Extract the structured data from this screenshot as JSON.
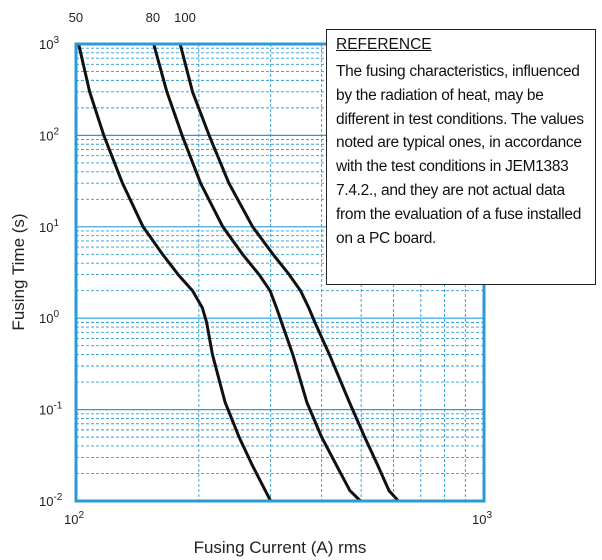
{
  "chart_data": {
    "type": "line",
    "xlabel": "Fusing Current (A) rms",
    "ylabel": "Fusing Time (s)",
    "x_scale": "log",
    "y_scale": "log",
    "xlim": [
      100,
      1000
    ],
    "ylim": [
      0.01,
      1000
    ],
    "grid": true,
    "x_ticks": [
      {
        "base": "10",
        "exp": "2"
      },
      {
        "base": "10",
        "exp": "3"
      }
    ],
    "y_ticks": [
      {
        "base": "10",
        "exp": "-2"
      },
      {
        "base": "10",
        "exp": "-1"
      },
      {
        "base": "10",
        "exp": "0"
      },
      {
        "base": "10",
        "exp": "1"
      },
      {
        "base": "10",
        "exp": "2"
      },
      {
        "base": "10",
        "exp": "3"
      }
    ],
    "series": [
      {
        "name": "50",
        "x": [
          101.5,
          108,
          117,
          130,
          146,
          163,
          178,
          193,
          204,
          209,
          216,
          232,
          251,
          270,
          291,
          300
        ],
        "y": [
          1000,
          300,
          100,
          30,
          10,
          5,
          3,
          2,
          1.3,
          0.9,
          0.4,
          0.12,
          0.05,
          0.025,
          0.013,
          0.01
        ]
      },
      {
        "name": "80",
        "x": [
          155,
          167,
          182,
          202,
          229,
          256,
          281,
          299,
          310,
          319,
          340,
          368,
          400,
          434,
          469,
          498
        ],
        "y": [
          1000,
          300,
          100,
          30,
          10,
          5,
          3,
          2,
          1.3,
          0.9,
          0.4,
          0.12,
          0.05,
          0.025,
          0.013,
          0.01
        ]
      },
      {
        "name": "100",
        "x": [
          180,
          193,
          212,
          237,
          271,
          304,
          333,
          355,
          372,
          385,
          418,
          468,
          510,
          548,
          585,
          617
        ],
        "y": [
          1000,
          300,
          100,
          30,
          10,
          5,
          3,
          2,
          1.3,
          0.9,
          0.4,
          0.12,
          0.05,
          0.025,
          0.013,
          0.01
        ]
      }
    ],
    "annotation": {
      "title": "REFERENCE",
      "text": "The fusing characteristics, influenced by the radiation of heat, may be different in test conditions. The values noted are typical ones, in accordance with the test conditions in JEM1383 7.4.2., and they are not actual data from the evaluation of a fuse installed on a PC board."
    },
    "colors": {
      "frame": "#2a9bd8",
      "grid": "#2a9bd8",
      "curve": "#111111"
    }
  }
}
